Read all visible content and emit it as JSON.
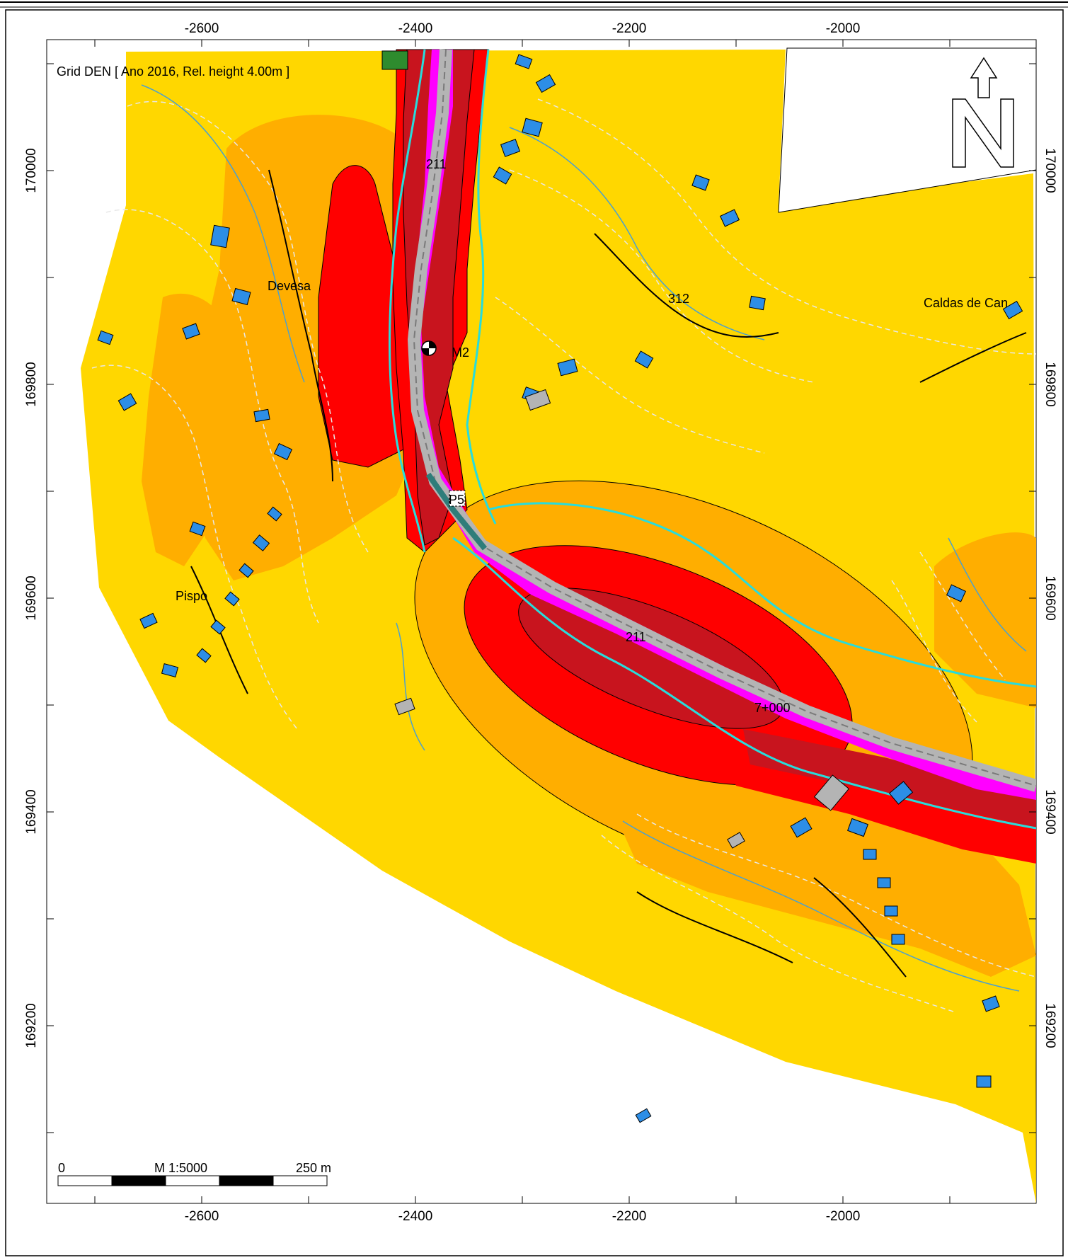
{
  "map": {
    "title": "Grid DEN  [ Ano 2016, Rel. height  4.00m ]",
    "x_ticks": [
      "-2600",
      "-2400",
      "-2200",
      "-2000"
    ],
    "y_ticks": [
      "170000",
      "169800",
      "169600",
      "169400",
      "169200"
    ],
    "place_labels": {
      "devesa": "Devesa",
      "caldas": "Caldas de Can",
      "pispo": "Pispo"
    },
    "road_labels": {
      "r211_north": "211",
      "r312": "312",
      "r211_south": "211",
      "km": "7+000"
    },
    "point_labels": {
      "m2": "M2",
      "p5": "P5"
    },
    "scale_bar": {
      "start": "0",
      "ratio": "M 1:5000",
      "end": "250 m"
    },
    "colors": {
      "zone_light": "#ffd700",
      "zone_orange": "#ffae00",
      "zone_red": "#ff0000",
      "zone_darkred": "#c8141e",
      "zone_magenta": "#ff00ff",
      "buildings": "#2d8ee6",
      "road": "#b4b4b4",
      "contours": "#87aecc",
      "streams": "#28dcdc"
    }
  }
}
